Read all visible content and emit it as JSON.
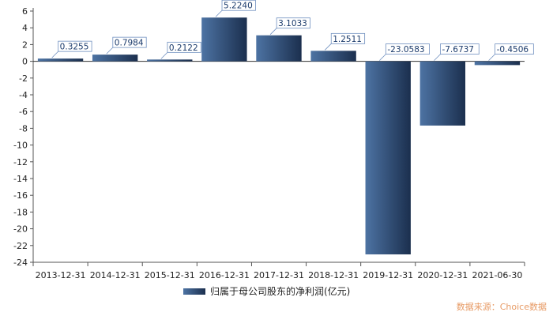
{
  "chart_data": {
    "type": "bar",
    "categories": [
      "2013-12-31",
      "2014-12-31",
      "2015-12-31",
      "2016-12-31",
      "2017-12-31",
      "2018-12-31",
      "2019-12-31",
      "2020-12-31",
      "2021-06-30"
    ],
    "series": [
      {
        "name": "归属于母公司股东的净利润(亿元)",
        "values": [
          0.3255,
          0.7984,
          0.2122,
          5.224,
          3.1033,
          1.2511,
          -23.0583,
          -7.6737,
          -0.4506
        ],
        "labels": [
          "0.3255",
          "0.7984",
          "0.2122",
          "5.2240",
          "3.1033",
          "1.2511",
          "-23.0583",
          "-7.6737",
          "-0.4506"
        ]
      }
    ],
    "ylim": [
      -24,
      6
    ],
    "yticks": [
      6,
      4,
      2,
      0,
      -2,
      -4,
      -6,
      -8,
      -10,
      -12,
      -14,
      -16,
      -18,
      -20,
      -22,
      -24
    ],
    "legend_position": "bottom",
    "grid": false,
    "colors": {
      "bar_dark": "#1b2f4e",
      "bar_light": "#4d73a3",
      "label_border": "#6f8fbf",
      "label_text": "#1a3a6b"
    }
  },
  "source_text": "数据来源：Choice数据"
}
